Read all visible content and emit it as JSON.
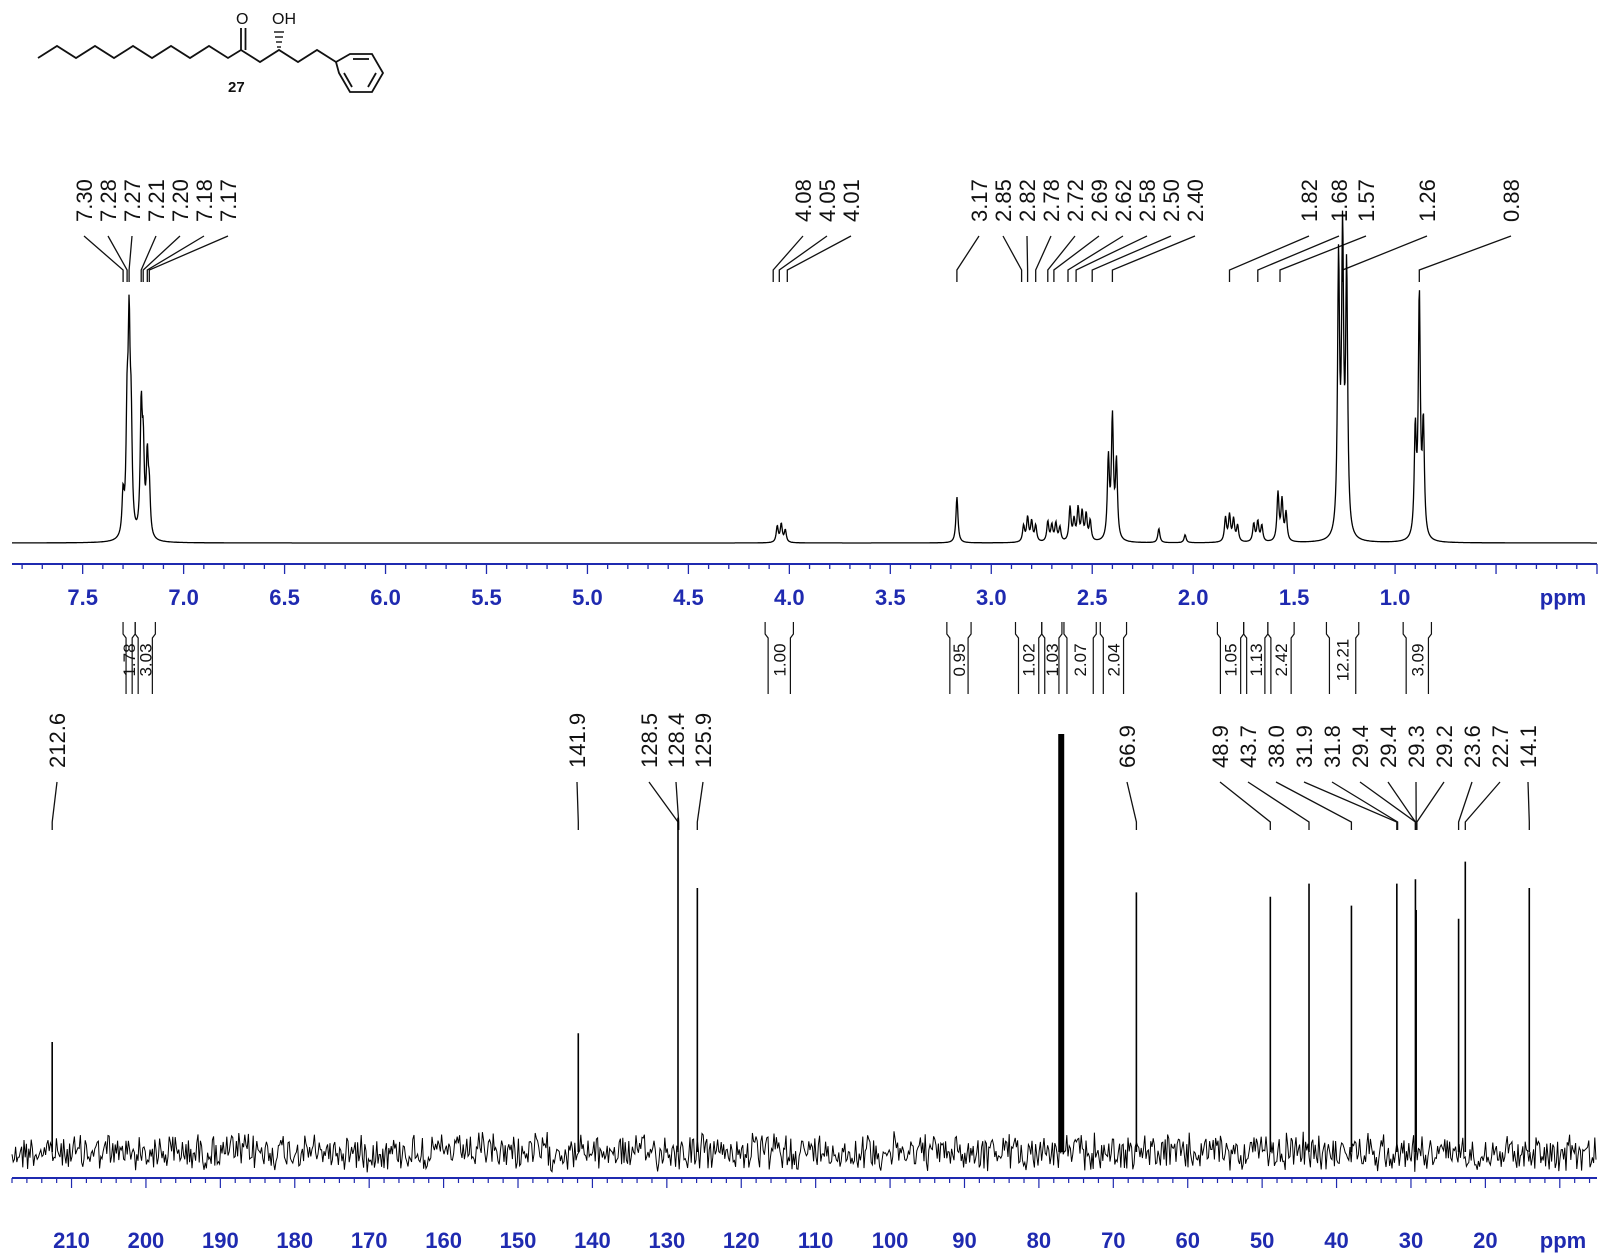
{
  "structure": {
    "compound_number": "27",
    "atom_labels": [
      "O",
      "OH"
    ]
  },
  "chart_data": [
    {
      "type": "line",
      "nucleus": "1H",
      "axis": {
        "range_ppm": [
          7.85,
          0.0
        ],
        "reversed": true,
        "major_ticks": [
          7.5,
          7.0,
          6.5,
          6.0,
          5.5,
          5.0,
          4.5,
          4.0,
          3.5,
          3.0,
          2.5,
          2.0,
          1.5,
          1.0
        ],
        "tick_labels": [
          "7.5",
          "7.0",
          "6.5",
          "6.0",
          "5.5",
          "5.0",
          "4.5",
          "4.0",
          "3.5",
          "3.0",
          "2.5",
          "2.0",
          "1.5",
          "1.0"
        ],
        "unit": "ppm"
      },
      "peak_labels": [
        {
          "group": 1,
          "labels": [
            "7.30",
            "7.28",
            "7.27",
            "7.21",
            "7.20",
            "7.18",
            "7.17"
          ],
          "positions": [
            7.3,
            7.28,
            7.27,
            7.21,
            7.2,
            7.18,
            7.17
          ]
        },
        {
          "group": 2,
          "labels": [
            "4.08",
            "4.05",
            "4.01"
          ],
          "positions": [
            4.08,
            4.05,
            4.01
          ]
        },
        {
          "group": 3,
          "labels": [
            "3.17",
            "2.85",
            "2.82",
            "2.78",
            "2.72",
            "2.69",
            "2.62",
            "2.58",
            "2.50",
            "2.40"
          ],
          "positions": [
            3.17,
            2.85,
            2.82,
            2.78,
            2.72,
            2.69,
            2.62,
            2.58,
            2.5,
            2.4
          ]
        },
        {
          "group": 4,
          "labels": [
            "1.82",
            "1.68",
            "1.57"
          ],
          "positions": [
            1.82,
            1.68,
            1.57
          ]
        },
        {
          "group": 5,
          "labels": [
            "1.26"
          ],
          "positions": [
            1.26
          ]
        },
        {
          "group": 6,
          "labels": [
            "0.88"
          ],
          "positions": [
            0.88
          ]
        }
      ],
      "peaks": [
        {
          "ppm": 7.28,
          "height": 0.55
        },
        {
          "ppm": 7.27,
          "height": 0.95
        },
        {
          "ppm": 7.26,
          "height": 0.5
        },
        {
          "ppm": 7.3,
          "height": 0.2
        },
        {
          "ppm": 7.21,
          "height": 0.62
        },
        {
          "ppm": 7.2,
          "height": 0.4
        },
        {
          "ppm": 7.18,
          "height": 0.38
        },
        {
          "ppm": 7.17,
          "height": 0.22
        },
        {
          "ppm": 4.06,
          "height": 0.08
        },
        {
          "ppm": 4.04,
          "height": 0.09
        },
        {
          "ppm": 4.02,
          "height": 0.06
        },
        {
          "ppm": 3.17,
          "height": 0.23
        },
        {
          "ppm": 2.84,
          "height": 0.08
        },
        {
          "ppm": 2.82,
          "height": 0.12
        },
        {
          "ppm": 2.8,
          "height": 0.1
        },
        {
          "ppm": 2.78,
          "height": 0.08
        },
        {
          "ppm": 2.72,
          "height": 0.1
        },
        {
          "ppm": 2.7,
          "height": 0.08
        },
        {
          "ppm": 2.68,
          "height": 0.09
        },
        {
          "ppm": 2.66,
          "height": 0.07
        },
        {
          "ppm": 2.61,
          "height": 0.17
        },
        {
          "ppm": 2.59,
          "height": 0.1
        },
        {
          "ppm": 2.57,
          "height": 0.16
        },
        {
          "ppm": 2.55,
          "height": 0.14
        },
        {
          "ppm": 2.53,
          "height": 0.13
        },
        {
          "ppm": 2.51,
          "height": 0.1
        },
        {
          "ppm": 2.42,
          "height": 0.4
        },
        {
          "ppm": 2.4,
          "height": 0.6
        },
        {
          "ppm": 2.38,
          "height": 0.38
        },
        {
          "ppm": 2.17,
          "height": 0.07
        },
        {
          "ppm": 2.04,
          "height": 0.04
        },
        {
          "ppm": 1.84,
          "height": 0.12
        },
        {
          "ppm": 1.82,
          "height": 0.13
        },
        {
          "ppm": 1.8,
          "height": 0.11
        },
        {
          "ppm": 1.78,
          "height": 0.08
        },
        {
          "ppm": 1.7,
          "height": 0.09
        },
        {
          "ppm": 1.68,
          "height": 0.1
        },
        {
          "ppm": 1.66,
          "height": 0.08
        },
        {
          "ppm": 1.58,
          "height": 0.24
        },
        {
          "ppm": 1.56,
          "height": 0.2
        },
        {
          "ppm": 1.54,
          "height": 0.14
        },
        {
          "ppm": 1.28,
          "height": 1.35
        },
        {
          "ppm": 1.26,
          "height": 1.45
        },
        {
          "ppm": 1.24,
          "height": 1.3
        },
        {
          "ppm": 0.9,
          "height": 0.52
        },
        {
          "ppm": 0.88,
          "height": 1.2
        },
        {
          "ppm": 0.86,
          "height": 0.55
        }
      ],
      "integrations": [
        {
          "label": "1.78",
          "from": 7.3,
          "to": 7.24
        },
        {
          "label": "3.03",
          "from": 7.24,
          "to": 7.14
        },
        {
          "label": "1.00",
          "from": 4.12,
          "to": 3.98
        },
        {
          "label": "0.95",
          "from": 3.22,
          "to": 3.1
        },
        {
          "label": "1.02",
          "from": 2.88,
          "to": 2.75
        },
        {
          "label": "1.03",
          "from": 2.75,
          "to": 2.65
        },
        {
          "label": "2.07",
          "from": 2.64,
          "to": 2.48
        },
        {
          "label": "2.04",
          "from": 2.46,
          "to": 2.33
        },
        {
          "label": "1.05",
          "from": 1.88,
          "to": 1.75
        },
        {
          "label": "1.13",
          "from": 1.75,
          "to": 1.63
        },
        {
          "label": "2.42",
          "from": 1.63,
          "to": 1.5
        },
        {
          "label": "12.21",
          "from": 1.34,
          "to": 1.18
        },
        {
          "label": "3.09",
          "from": 0.96,
          "to": 0.82
        }
      ]
    },
    {
      "type": "line",
      "nucleus": "13C",
      "axis": {
        "range_ppm": [
          218.0,
          5.0
        ],
        "reversed": true,
        "major_ticks": [
          210,
          200,
          190,
          180,
          170,
          160,
          150,
          140,
          130,
          120,
          110,
          100,
          90,
          80,
          70,
          60,
          50,
          40,
          30,
          20
        ],
        "tick_labels": [
          "210",
          "200",
          "190",
          "180",
          "170",
          "160",
          "150",
          "140",
          "130",
          "120",
          "110",
          "100",
          "90",
          "80",
          "70",
          "60",
          "50",
          "40",
          "30",
          "20"
        ],
        "unit": "ppm"
      },
      "peak_labels": [
        {
          "group": 1,
          "labels": [
            "212.6"
          ],
          "positions": [
            212.6
          ]
        },
        {
          "group": 2,
          "labels": [
            "141.9"
          ],
          "positions": [
            141.9
          ]
        },
        {
          "group": 3,
          "labels": [
            "128.5",
            "128.4",
            "125.9"
          ],
          "positions": [
            128.5,
            128.4,
            125.9
          ]
        },
        {
          "group": 4,
          "labels": [
            "66.9"
          ],
          "positions": [
            66.9
          ]
        },
        {
          "group": 5,
          "labels": [
            "48.9",
            "43.7",
            "38.0",
            "31.9",
            "31.8",
            "29.4",
            "29.4",
            "29.3",
            "29.2",
            "23.6",
            "22.7",
            "14.1"
          ],
          "positions": [
            48.9,
            43.7,
            38.0,
            31.9,
            31.8,
            29.4,
            29.4,
            29.3,
            29.2,
            23.6,
            22.7,
            14.1
          ]
        }
      ],
      "peaks": [
        {
          "ppm": 212.6,
          "height": 0.25
        },
        {
          "ppm": 141.9,
          "height": 0.27
        },
        {
          "ppm": 128.5,
          "height": 0.76
        },
        {
          "ppm": 125.9,
          "height": 0.6
        },
        {
          "ppm": 77.0,
          "height": 0.95
        },
        {
          "ppm": 66.9,
          "height": 0.59
        },
        {
          "ppm": 48.9,
          "height": 0.58
        },
        {
          "ppm": 43.7,
          "height": 0.61
        },
        {
          "ppm": 38.0,
          "height": 0.56
        },
        {
          "ppm": 31.9,
          "height": 0.61
        },
        {
          "ppm": 29.4,
          "height": 0.62
        },
        {
          "ppm": 29.3,
          "height": 0.55
        },
        {
          "ppm": 23.6,
          "height": 0.53
        },
        {
          "ppm": 22.7,
          "height": 0.66
        },
        {
          "ppm": 14.1,
          "height": 0.6
        }
      ]
    }
  ]
}
